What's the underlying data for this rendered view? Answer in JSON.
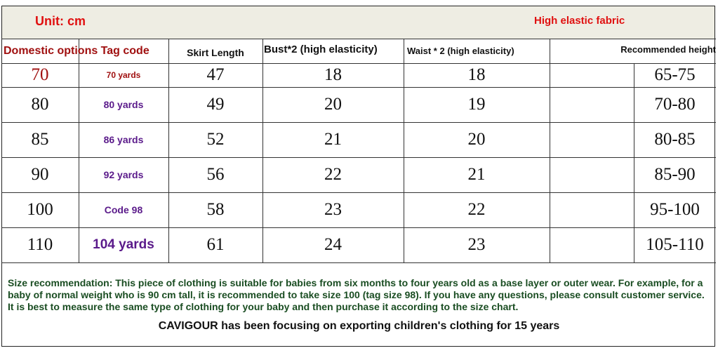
{
  "unit": "Unit: cm",
  "fabric": "High elastic fabric",
  "headers": [
    "Domestic options Tag code",
    "Skirt Length",
    "Bust*2 (high elasticity)",
    "Waist * 2 (high elasticity)",
    "Recommended height"
  ],
  "rows": [
    {
      "size": "70",
      "tag": "70 yards",
      "skirt": "47",
      "bust": "18",
      "waist": "18",
      "height": "65-75"
    },
    {
      "size": "80",
      "tag": "80 yards",
      "skirt": "49",
      "bust": "20",
      "waist": "19",
      "height": "70-80"
    },
    {
      "size": "85",
      "tag": "86 yards",
      "skirt": "52",
      "bust": "21",
      "waist": "20",
      "height": "80-85"
    },
    {
      "size": "90",
      "tag": "92 yards",
      "skirt": "56",
      "bust": "22",
      "waist": "21",
      "height": "85-90"
    },
    {
      "size": "100",
      "tag": "Code 98",
      "skirt": "58",
      "bust": "23",
      "waist": "22",
      "height": "95-100"
    },
    {
      "size": "110",
      "tag": "104 yards",
      "skirt": "61",
      "bust": "24",
      "waist": "23",
      "height": "105-110"
    }
  ],
  "colors": {
    "red": "#e01010",
    "dark_red": "#a01010",
    "purple": "#5a1a8a",
    "green": "#1a4d22"
  },
  "note": "Size recommendation: This piece of clothing is suitable for babies from six months to four years old as a base layer or outer wear. For example, for a baby of normal weight who is 90 cm tall, it is recommended to take size 100 (tag size 98). If you have any questions, please consult customer service. It is best to measure the same type of clothing for your baby and then purchase it according to the size chart.",
  "footer": "CAVIGOUR has been focusing on exporting children's clothing for 15 years"
}
